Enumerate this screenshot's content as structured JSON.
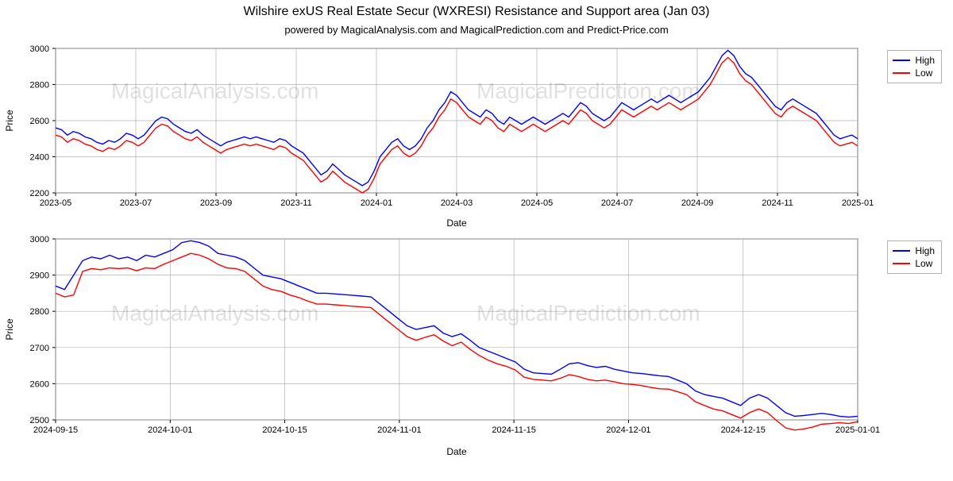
{
  "title": "Wilshire exUS Real Estate Secur (WXRESI) Resistance and Support area (Jan 03)",
  "subtitle": "powered by MagicalAnalysis.com and MagicalPrediction.com and Predict-Price.com",
  "watermarks": {
    "top": [
      "MagicalAnalysis.com",
      "MagicalPrediction.com"
    ],
    "bottom": [
      "MagicalAnalysis.com",
      "MagicalPrediction.com"
    ]
  },
  "legend": {
    "high_label": "High",
    "low_label": "Low"
  },
  "colors": {
    "high": "#0000ff",
    "low": "#ff0000",
    "grid": "#b0b0b0",
    "axis": "#000000",
    "background": "#ffffff"
  },
  "chart1": {
    "type": "line",
    "xlabel": "Date",
    "ylabel": "Price",
    "ylim": [
      2200,
      3000
    ],
    "yticks": [
      2200,
      2400,
      2600,
      2800,
      3000
    ],
    "xticks": [
      "2023-05",
      "2023-07",
      "2023-09",
      "2023-11",
      "2024-01",
      "2024-03",
      "2024-05",
      "2024-07",
      "2024-09",
      "2024-11",
      "2025-01"
    ],
    "line_width": 1.4,
    "grid": true,
    "series_high": [
      2560,
      2550,
      2520,
      2540,
      2530,
      2510,
      2500,
      2480,
      2470,
      2490,
      2480,
      2500,
      2530,
      2520,
      2500,
      2520,
      2560,
      2600,
      2620,
      2610,
      2580,
      2560,
      2540,
      2530,
      2550,
      2520,
      2500,
      2480,
      2460,
      2480,
      2490,
      2500,
      2510,
      2500,
      2510,
      2500,
      2490,
      2480,
      2500,
      2490,
      2460,
      2440,
      2420,
      2380,
      2340,
      2300,
      2320,
      2360,
      2330,
      2300,
      2280,
      2260,
      2240,
      2260,
      2320,
      2400,
      2440,
      2480,
      2500,
      2460,
      2440,
      2460,
      2500,
      2560,
      2600,
      2660,
      2700,
      2760,
      2740,
      2700,
      2660,
      2640,
      2620,
      2660,
      2640,
      2600,
      2580,
      2620,
      2600,
      2580,
      2600,
      2620,
      2600,
      2580,
      2600,
      2620,
      2640,
      2620,
      2660,
      2700,
      2680,
      2640,
      2620,
      2600,
      2620,
      2660,
      2700,
      2680,
      2660,
      2680,
      2700,
      2720,
      2700,
      2720,
      2740,
      2720,
      2700,
      2720,
      2740,
      2760,
      2800,
      2840,
      2900,
      2960,
      2990,
      2960,
      2900,
      2860,
      2840,
      2800,
      2760,
      2720,
      2680,
      2660,
      2700,
      2720,
      2700,
      2680,
      2660,
      2640,
      2600,
      2560,
      2520,
      2500,
      2510,
      2520,
      2500
    ],
    "series_low": [
      2520,
      2510,
      2480,
      2500,
      2490,
      2470,
      2460,
      2440,
      2430,
      2450,
      2440,
      2460,
      2490,
      2480,
      2460,
      2480,
      2520,
      2560,
      2580,
      2570,
      2540,
      2520,
      2500,
      2490,
      2510,
      2480,
      2460,
      2440,
      2420,
      2440,
      2450,
      2460,
      2470,
      2460,
      2470,
      2460,
      2450,
      2440,
      2460,
      2450,
      2420,
      2400,
      2380,
      2340,
      2300,
      2260,
      2280,
      2320,
      2290,
      2260,
      2240,
      2220,
      2200,
      2220,
      2280,
      2360,
      2400,
      2440,
      2460,
      2420,
      2400,
      2420,
      2460,
      2520,
      2560,
      2620,
      2660,
      2720,
      2700,
      2660,
      2620,
      2600,
      2580,
      2620,
      2600,
      2560,
      2540,
      2580,
      2560,
      2540,
      2560,
      2580,
      2560,
      2540,
      2560,
      2580,
      2600,
      2580,
      2620,
      2660,
      2640,
      2600,
      2580,
      2560,
      2580,
      2620,
      2660,
      2640,
      2620,
      2640,
      2660,
      2680,
      2660,
      2680,
      2700,
      2680,
      2660,
      2680,
      2700,
      2720,
      2760,
      2800,
      2860,
      2920,
      2950,
      2920,
      2860,
      2820,
      2800,
      2760,
      2720,
      2680,
      2640,
      2620,
      2660,
      2680,
      2660,
      2640,
      2620,
      2600,
      2560,
      2520,
      2480,
      2460,
      2470,
      2480,
      2460
    ]
  },
  "chart2": {
    "type": "line",
    "xlabel": "Date",
    "ylabel": "Price",
    "ylim": [
      2500,
      3000
    ],
    "yticks": [
      2500,
      2600,
      2700,
      2800,
      2900,
      3000
    ],
    "xticks": [
      "2024-09-15",
      "2024-10-01",
      "2024-10-15",
      "2024-11-01",
      "2024-11-15",
      "2024-12-01",
      "2024-12-15",
      "2025-01-01"
    ],
    "line_width": 1.4,
    "grid": true,
    "series_high": [
      2870,
      2860,
      2900,
      2940,
      2950,
      2945,
      2955,
      2945,
      2950,
      2940,
      2955,
      2950,
      2960,
      2970,
      2990,
      2995,
      2990,
      2980,
      2960,
      2955,
      2950,
      2940,
      2920,
      2900,
      2895,
      2890,
      2880,
      2870,
      2860,
      2850,
      2850,
      2848,
      2846,
      2844,
      2842,
      2840,
      2820,
      2800,
      2780,
      2760,
      2750,
      2755,
      2760,
      2740,
      2730,
      2738,
      2720,
      2700,
      2690,
      2680,
      2670,
      2660,
      2640,
      2630,
      2628,
      2626,
      2640,
      2655,
      2658,
      2650,
      2645,
      2648,
      2640,
      2635,
      2630,
      2628,
      2625,
      2622,
      2620,
      2610,
      2600,
      2580,
      2570,
      2565,
      2560,
      2550,
      2540,
      2560,
      2570,
      2560,
      2540,
      2520,
      2510,
      2512,
      2515,
      2518,
      2515,
      2510,
      2508,
      2510
    ],
    "series_low": [
      2850,
      2840,
      2845,
      2910,
      2918,
      2915,
      2920,
      2918,
      2920,
      2912,
      2920,
      2918,
      2930,
      2940,
      2950,
      2960,
      2955,
      2945,
      2930,
      2920,
      2918,
      2910,
      2890,
      2870,
      2860,
      2855,
      2845,
      2838,
      2828,
      2820,
      2820,
      2818,
      2816,
      2814,
      2812,
      2810,
      2790,
      2770,
      2750,
      2730,
      2720,
      2728,
      2735,
      2718,
      2705,
      2715,
      2695,
      2678,
      2665,
      2655,
      2648,
      2638,
      2618,
      2612,
      2610,
      2608,
      2615,
      2625,
      2620,
      2612,
      2608,
      2610,
      2605,
      2600,
      2598,
      2595,
      2590,
      2586,
      2585,
      2578,
      2570,
      2550,
      2540,
      2530,
      2525,
      2515,
      2505,
      2520,
      2530,
      2520,
      2498,
      2478,
      2472,
      2475,
      2480,
      2488,
      2490,
      2492,
      2490,
      2495
    ]
  }
}
